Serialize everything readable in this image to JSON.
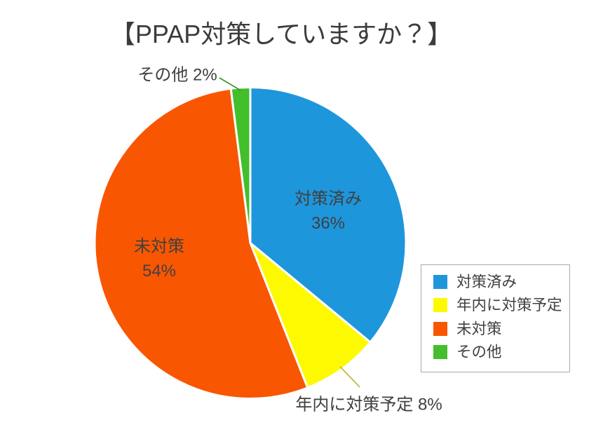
{
  "chart_data": {
    "type": "pie",
    "title": "【PPAP対策していますか？】",
    "labels": [
      "対策済み",
      "年内に対策予定",
      "未対策",
      "その他"
    ],
    "values": [
      36,
      8,
      54,
      2
    ],
    "values_text": [
      "36%",
      "8%",
      "54%",
      "2%"
    ],
    "unit": "%",
    "colors": [
      "#1e96dc",
      "#fdf900",
      "#f95602",
      "#43bf2e"
    ],
    "leader_line_colors": [
      "",
      "#b9b421",
      "",
      "#35921f"
    ],
    "slice_border_color": "#ffffff",
    "start_angle": "12-oclock",
    "direction": "clockwise",
    "legend_position": "right",
    "data_label_placement": [
      "inside",
      "outside-bottom",
      "inside",
      "outside-top"
    ],
    "text_color": "#404040",
    "background_color": "#ffffff"
  },
  "legend": {
    "items": [
      {
        "label": "対策済み"
      },
      {
        "label": "年内に対策予定"
      },
      {
        "label": "未対策"
      },
      {
        "label": "その他"
      }
    ]
  },
  "separators": {
    "space": " "
  }
}
